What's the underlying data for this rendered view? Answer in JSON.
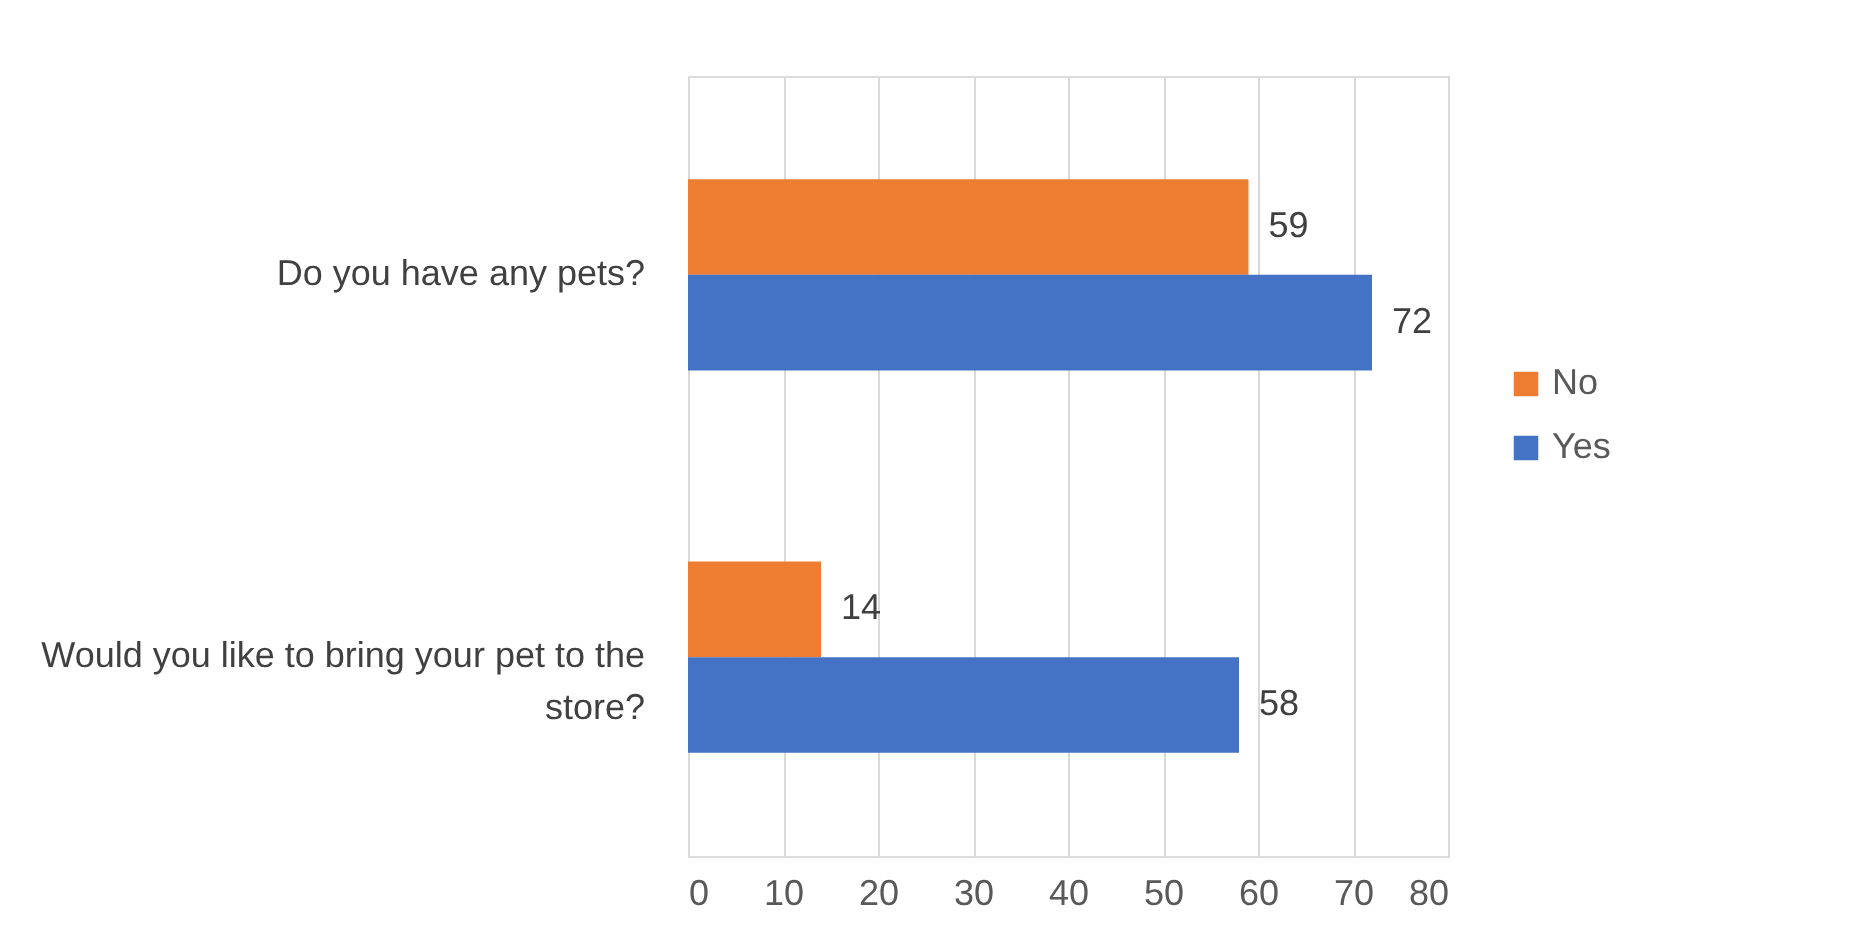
{
  "chart_data": {
    "type": "bar",
    "orientation": "horizontal",
    "categories": [
      "Do you have any pets?",
      "Would you like to bring your pet to the store?"
    ],
    "series": [
      {
        "name": "No",
        "color": "#ed7d31",
        "values": [
          59,
          14
        ]
      },
      {
        "name": "Yes",
        "color": "#4472c4",
        "values": [
          72,
          58
        ]
      }
    ],
    "xlim": [
      0,
      80
    ],
    "xticks": [
      0,
      10,
      20,
      30,
      40,
      50,
      60,
      70,
      80
    ],
    "grid": "x",
    "legend": "right",
    "data_labels": true
  }
}
